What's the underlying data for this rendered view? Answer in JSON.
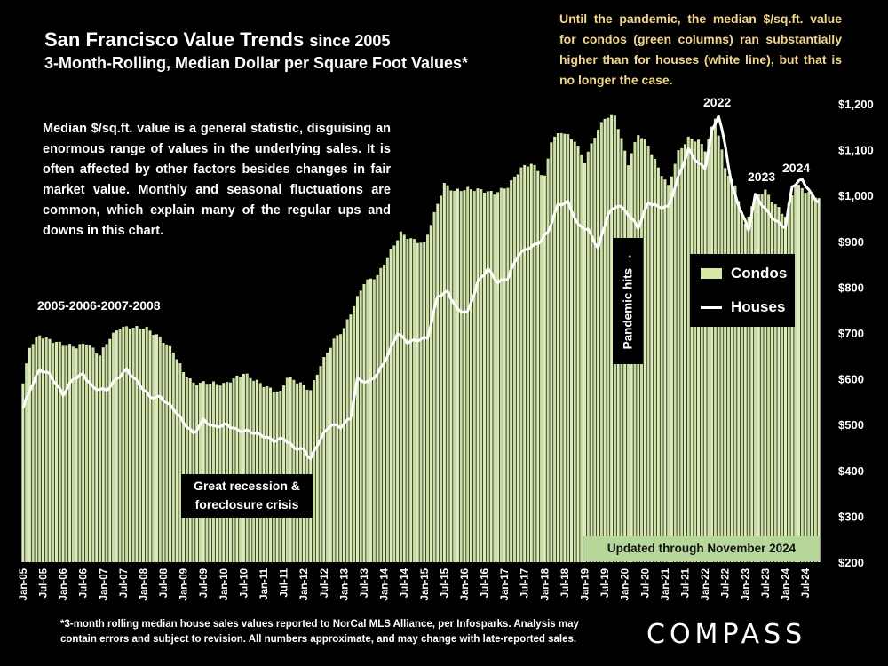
{
  "title": {
    "main": "San Francisco Value Trends",
    "since": "since 2005"
  },
  "subtitle": "3-Month-Rolling, Median Dollar per Square Foot Values*",
  "note": "Until the pandemic, the median $/sq.ft. value for condos (green columns) ran substantially higher than for houses (white line), but that is no longer the case.",
  "description": "Median $/sq.ft. value is a general statistic, disguising an enormous range of values in the underlying sales. It is often affected by other factors besides changes in fair market value. Monthly and seasonal fluctuations are common, which explain many of the regular ups and downs in this chart.",
  "annotations": {
    "period_2005_2008": "2005-2006-2007-2008",
    "recession": "Great recession & foreclosure crisis",
    "pandemic": "Pandemic hits →",
    "year_2022": "2022",
    "year_2023": "2023",
    "year_2024": "2024",
    "updated": "Updated through November 2024"
  },
  "legend": {
    "condos": "Condos",
    "houses": "Houses"
  },
  "footnote": "*3-month rolling median house sales values reported to NorCal MLS Alliance, per Infosparks. Analysis may contain errors and subject to revision. All numbers approximate, and may change with late-reported sales.",
  "brand": "COMPASS",
  "colors": {
    "condo_bar": "#c9dfa0",
    "condo_bar_light": "#dcebb9",
    "houses_line": "#ffffff",
    "background": "#000000",
    "note_text": "#f4d58d"
  },
  "chart_data": {
    "type": "bar+line",
    "x_start": "2005-01",
    "x_end": "2024-11",
    "x_tick_labels": [
      "Jan-05",
      "Jul-05",
      "Jan-06",
      "Jul-06",
      "Jan-07",
      "Jul-07",
      "Jan-08",
      "Jul-08",
      "Jan-09",
      "Jul-09",
      "Jan-10",
      "Jul-10",
      "Jan-11",
      "Jul-11",
      "Jan-12",
      "Jul-12",
      "Jan-13",
      "Jul-13",
      "Jan-14",
      "Jul-14",
      "Jan-15",
      "Jul-15",
      "Jan-16",
      "Jul-16",
      "Jan-17",
      "Jul-17",
      "Jan-18",
      "Jul-18",
      "Jan-19",
      "Jul-19",
      "Jan-20",
      "Jul-20",
      "Jan-21",
      "Jul-21",
      "Jan-22",
      "Jul-22",
      "Jan-23",
      "Jul-23",
      "Jan-24",
      "Jul-24"
    ],
    "y_tick_labels": [
      "$200",
      "$300",
      "$400",
      "$500",
      "$600",
      "$700",
      "$800",
      "$900",
      "$1,000",
      "$1,100",
      "$1,200"
    ],
    "ylim": [
      200,
      1200
    ],
    "y_axis_side": "right",
    "series": [
      {
        "name": "Condos",
        "kind": "bar",
        "anchors": [
          [
            "2005-01",
            590
          ],
          [
            "2005-03",
            670
          ],
          [
            "2005-06",
            695
          ],
          [
            "2005-09",
            685
          ],
          [
            "2006-01",
            675
          ],
          [
            "2006-05",
            670
          ],
          [
            "2006-08",
            678
          ],
          [
            "2006-12",
            652
          ],
          [
            "2007-03",
            690
          ],
          [
            "2007-06",
            712
          ],
          [
            "2007-10",
            712
          ],
          [
            "2008-02",
            710
          ],
          [
            "2008-06",
            690
          ],
          [
            "2008-10",
            660
          ],
          [
            "2009-01",
            615
          ],
          [
            "2009-04",
            590
          ],
          [
            "2009-08",
            592
          ],
          [
            "2010-01",
            588
          ],
          [
            "2010-07",
            612
          ],
          [
            "2010-12",
            590
          ],
          [
            "2011-03",
            578
          ],
          [
            "2011-06",
            570
          ],
          [
            "2011-08",
            605
          ],
          [
            "2011-12",
            590
          ],
          [
            "2012-03",
            575
          ],
          [
            "2012-06",
            630
          ],
          [
            "2012-10",
            685
          ],
          [
            "2013-01",
            710
          ],
          [
            "2013-04",
            760
          ],
          [
            "2013-07",
            810
          ],
          [
            "2013-11",
            825
          ],
          [
            "2014-03",
            880
          ],
          [
            "2014-06",
            918
          ],
          [
            "2014-09",
            905
          ],
          [
            "2015-01",
            895
          ],
          [
            "2015-04",
            960
          ],
          [
            "2015-07",
            1025
          ],
          [
            "2015-10",
            1010
          ],
          [
            "2016-02",
            1015
          ],
          [
            "2016-06",
            1012
          ],
          [
            "2016-10",
            1005
          ],
          [
            "2017-02",
            1020
          ],
          [
            "2017-06",
            1060
          ],
          [
            "2017-09",
            1070
          ],
          [
            "2018-01",
            1040
          ],
          [
            "2018-03",
            1120
          ],
          [
            "2018-06",
            1140
          ],
          [
            "2018-10",
            1120
          ],
          [
            "2019-01",
            1075
          ],
          [
            "2019-04",
            1130
          ],
          [
            "2019-07",
            1170
          ],
          [
            "2019-10",
            1175
          ],
          [
            "2020-02",
            1070
          ],
          [
            "2020-05",
            1135
          ],
          [
            "2020-08",
            1110
          ],
          [
            "2020-11",
            1060
          ],
          [
            "2021-02",
            1020
          ],
          [
            "2021-05",
            1095
          ],
          [
            "2021-08",
            1125
          ],
          [
            "2021-11",
            1120
          ],
          [
            "2022-01",
            1100
          ],
          [
            "2022-04",
            1170
          ],
          [
            "2022-07",
            1060
          ],
          [
            "2022-10",
            1020
          ],
          [
            "2023-01",
            935
          ],
          [
            "2023-04",
            1000
          ],
          [
            "2023-07",
            1010
          ],
          [
            "2023-10",
            980
          ],
          [
            "2024-01",
            955
          ],
          [
            "2024-04",
            1025
          ],
          [
            "2024-07",
            1010
          ],
          [
            "2024-11",
            995
          ]
        ]
      },
      {
        "name": "Houses",
        "kind": "line",
        "anchors": [
          [
            "2005-01",
            535
          ],
          [
            "2005-03",
            575
          ],
          [
            "2005-06",
            620
          ],
          [
            "2005-09",
            610
          ],
          [
            "2006-01",
            565
          ],
          [
            "2006-04",
            600
          ],
          [
            "2006-07",
            610
          ],
          [
            "2006-10",
            580
          ],
          [
            "2007-02",
            575
          ],
          [
            "2007-05",
            600
          ],
          [
            "2007-08",
            620
          ],
          [
            "2007-11",
            595
          ],
          [
            "2008-03",
            560
          ],
          [
            "2008-06",
            560
          ],
          [
            "2008-10",
            535
          ],
          [
            "2009-01",
            505
          ],
          [
            "2009-04",
            480
          ],
          [
            "2009-07",
            510
          ],
          [
            "2009-10",
            495
          ],
          [
            "2010-02",
            500
          ],
          [
            "2010-05",
            488
          ],
          [
            "2010-09",
            485
          ],
          [
            "2011-01",
            475
          ],
          [
            "2011-04",
            465
          ],
          [
            "2011-07",
            470
          ],
          [
            "2011-10",
            450
          ],
          [
            "2012-01",
            445
          ],
          [
            "2012-03",
            425
          ],
          [
            "2012-06",
            470
          ],
          [
            "2012-09",
            500
          ],
          [
            "2012-12",
            495
          ],
          [
            "2013-03",
            515
          ],
          [
            "2013-05",
            600
          ],
          [
            "2013-08",
            592
          ],
          [
            "2013-11",
            610
          ],
          [
            "2014-02",
            650
          ],
          [
            "2014-05",
            700
          ],
          [
            "2014-08",
            680
          ],
          [
            "2014-11",
            685
          ],
          [
            "2015-02",
            690
          ],
          [
            "2015-05",
            780
          ],
          [
            "2015-08",
            790
          ],
          [
            "2015-11",
            750
          ],
          [
            "2016-02",
            745
          ],
          [
            "2016-05",
            810
          ],
          [
            "2016-08",
            840
          ],
          [
            "2016-11",
            810
          ],
          [
            "2017-02",
            820
          ],
          [
            "2017-05",
            870
          ],
          [
            "2017-08",
            885
          ],
          [
            "2017-11",
            895
          ],
          [
            "2018-02",
            920
          ],
          [
            "2018-05",
            980
          ],
          [
            "2018-08",
            985
          ],
          [
            "2018-11",
            935
          ],
          [
            "2019-02",
            925
          ],
          [
            "2019-05",
            885
          ],
          [
            "2019-08",
            960
          ],
          [
            "2019-11",
            980
          ],
          [
            "2020-02",
            960
          ],
          [
            "2020-05",
            930
          ],
          [
            "2020-08",
            985
          ],
          [
            "2020-11",
            975
          ],
          [
            "2021-02",
            975
          ],
          [
            "2021-05",
            1040
          ],
          [
            "2021-08",
            1100
          ],
          [
            "2021-11",
            1070
          ],
          [
            "2022-01",
            1060
          ],
          [
            "2022-03",
            1140
          ],
          [
            "2022-05",
            1175
          ],
          [
            "2022-07",
            1110
          ],
          [
            "2022-09",
            1020
          ],
          [
            "2022-12",
            960
          ],
          [
            "2023-02",
            925
          ],
          [
            "2023-04",
            1000
          ],
          [
            "2023-07",
            970
          ],
          [
            "2023-10",
            945
          ],
          [
            "2024-01",
            930
          ],
          [
            "2024-03",
            1020
          ],
          [
            "2024-06",
            1035
          ],
          [
            "2024-09",
            1000
          ],
          [
            "2024-11",
            985
          ]
        ]
      }
    ]
  }
}
